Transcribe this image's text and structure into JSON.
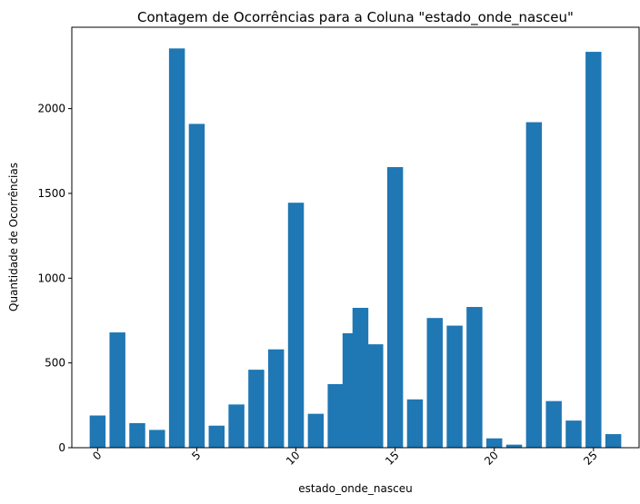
{
  "chart_data": {
    "type": "bar",
    "title": "Contagem de Ocorrências para a Coluna \"estado_onde_nasceu\"",
    "xlabel": "estado_onde_nasceu",
    "ylabel": "Quantidade de Ocorrências",
    "x": [
      0,
      1,
      2,
      3,
      4,
      5,
      6,
      7,
      8,
      9,
      10,
      11,
      12,
      12.75,
      13.25,
      14,
      15,
      16,
      17,
      18,
      19,
      20,
      21,
      22,
      23,
      24,
      25,
      26
    ],
    "values": [
      190,
      680,
      145,
      105,
      2355,
      1910,
      130,
      255,
      460,
      580,
      1445,
      200,
      375,
      675,
      825,
      610,
      1655,
      285,
      765,
      720,
      830,
      55,
      18,
      1920,
      275,
      160,
      2335,
      80
    ],
    "xlim": [
      -1.3,
      27.3
    ],
    "ylim": [
      0,
      2480
    ],
    "xticks": [
      0,
      5,
      10,
      15,
      20,
      25
    ],
    "xtick_labels": [
      "0",
      "5",
      "10",
      "15",
      "20",
      "25"
    ],
    "yticks": [
      0,
      500,
      1000,
      1500,
      2000
    ],
    "ytick_labels": [
      "0",
      "500",
      "1000",
      "1500",
      "2000"
    ],
    "bar_color": "#1f77b4",
    "grid": false,
    "legend": "none"
  }
}
